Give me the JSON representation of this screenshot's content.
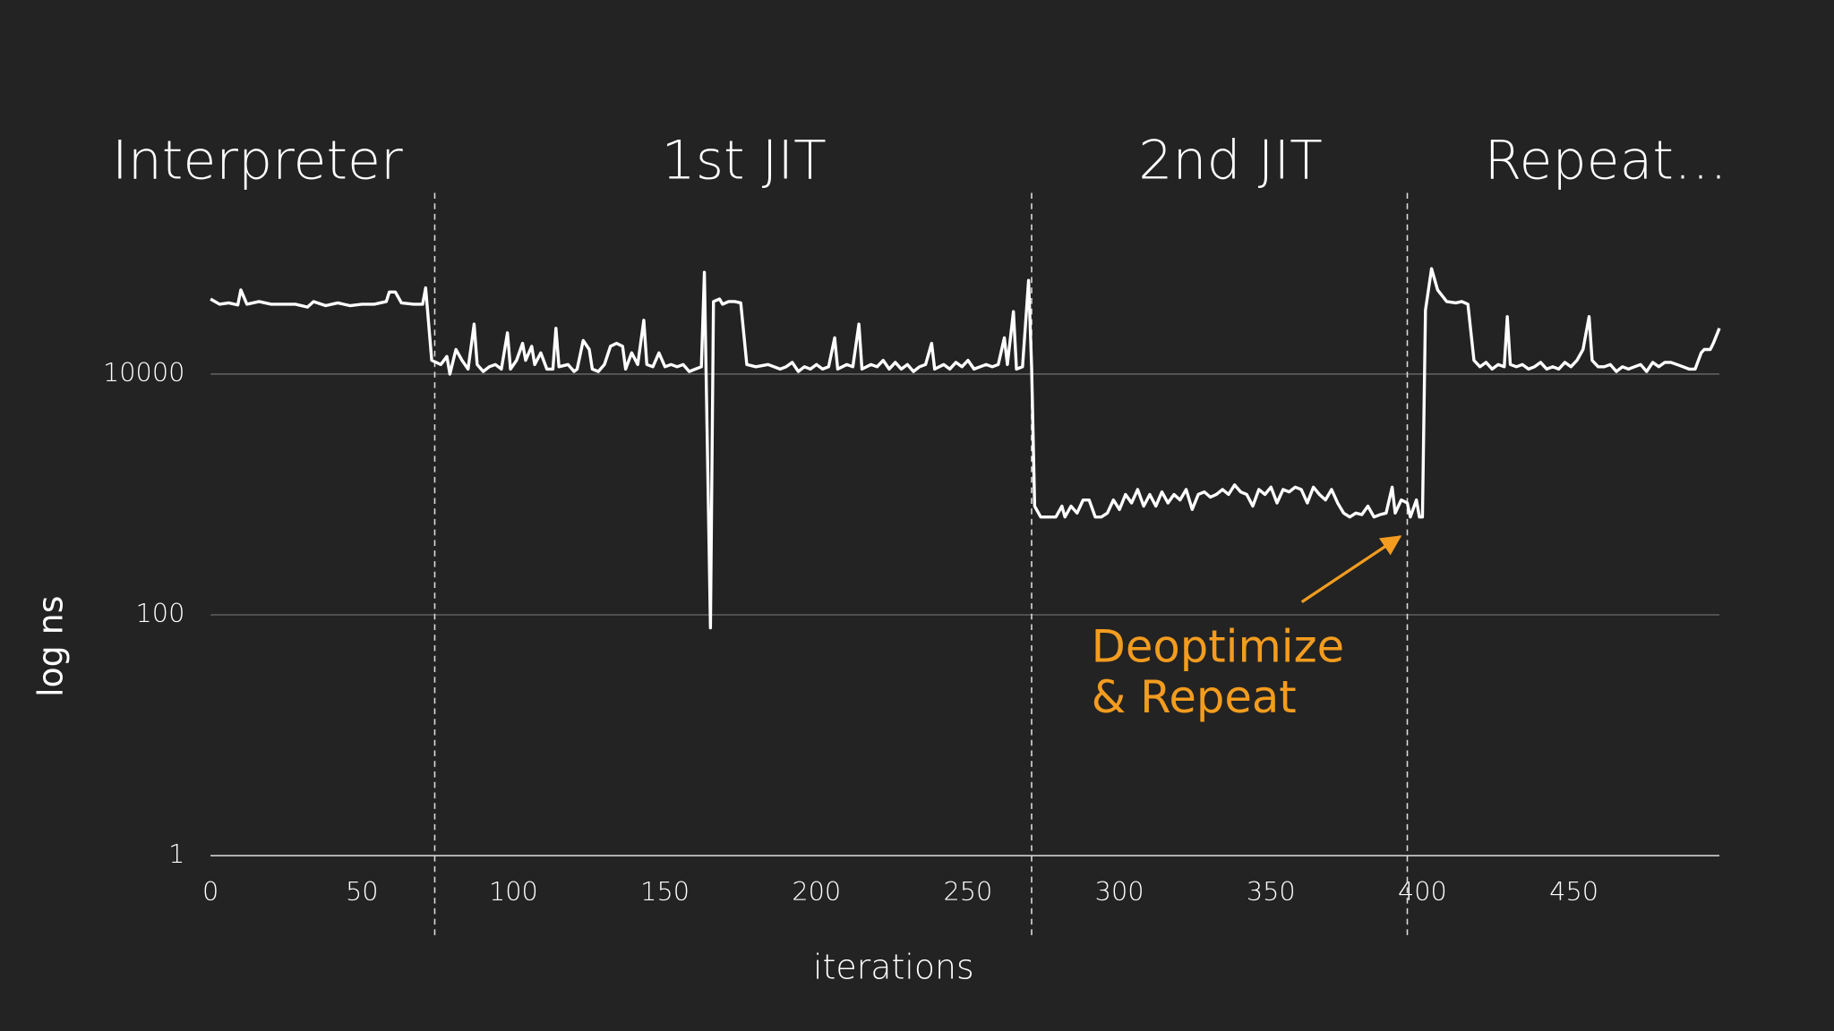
{
  "chart_data": {
    "type": "line",
    "x_label": "iterations",
    "y_label": "log ns",
    "log_y": true,
    "grid": true,
    "color": "#ffffff",
    "xlim": [
      0,
      498
    ],
    "xticks": [
      0,
      50,
      100,
      150,
      200,
      250,
      300,
      350,
      400,
      450
    ],
    "ylim": [
      1,
      100000
    ],
    "yticks": [
      1,
      100,
      10000
    ],
    "phases": [
      "Interpreter",
      "1st JIT",
      "2nd JIT",
      "Repeat…"
    ],
    "boundaries": [
      74,
      271,
      395
    ],
    "annotation": {
      "lines": [
        "Deoptimize",
        "& Repeat"
      ],
      "color": "#f39c1f"
    },
    "x": [
      0,
      3,
      6,
      9,
      10,
      12,
      16,
      20,
      24,
      28,
      32,
      34,
      38,
      42,
      46,
      50,
      54,
      58,
      59,
      61,
      63,
      67,
      70,
      71,
      73,
      76,
      78,
      79,
      81,
      83,
      85,
      87,
      88,
      90,
      92,
      94,
      96,
      98,
      99,
      101,
      103,
      104,
      106,
      107,
      109,
      111,
      113,
      114,
      115,
      118,
      120,
      121,
      123,
      125,
      126,
      128,
      130,
      132,
      134,
      136,
      137,
      139,
      141,
      143,
      144,
      146,
      148,
      150,
      152,
      154,
      156,
      158,
      160,
      162,
      163,
      165,
      166,
      168,
      169,
      171,
      173,
      175,
      177,
      180,
      184,
      188,
      190,
      192,
      194,
      196,
      198,
      200,
      202,
      204,
      206,
      207,
      210,
      212,
      214,
      215,
      218,
      220,
      222,
      224,
      226,
      228,
      230,
      232,
      234,
      236,
      238,
      239,
      242,
      244,
      246,
      248,
      250,
      252,
      254,
      256,
      258,
      260,
      262,
      263,
      265,
      266,
      268,
      270,
      271,
      272,
      274,
      277,
      279,
      281,
      282,
      284,
      286,
      288,
      290,
      292,
      294,
      296,
      298,
      300,
      302,
      304,
      306,
      308,
      310,
      312,
      314,
      316,
      318,
      320,
      322,
      324,
      326,
      328,
      330,
      332,
      334,
      336,
      338,
      340,
      342,
      344,
      346,
      348,
      350,
      352,
      354,
      356,
      358,
      360,
      362,
      364,
      366,
      368,
      370,
      372,
      374,
      376,
      378,
      380,
      382,
      384,
      386,
      388,
      390,
      391,
      393,
      395,
      396,
      398,
      399,
      400,
      401,
      403,
      405,
      408,
      411,
      413,
      415,
      417,
      419,
      421,
      423,
      425,
      427,
      428,
      429,
      431,
      433,
      435,
      437,
      439,
      441,
      443,
      445,
      447,
      449,
      451,
      453,
      455,
      456,
      458,
      460,
      462,
      464,
      466,
      468,
      470,
      472,
      474,
      476,
      478,
      480,
      482,
      484,
      486,
      488,
      490,
      492,
      493,
      495,
      496,
      498
    ],
    "values": [
      42000,
      38000,
      39000,
      37500,
      50000,
      38000,
      40000,
      38000,
      38000,
      38000,
      36000,
      40000,
      37000,
      39000,
      37000,
      38000,
      38000,
      40000,
      48000,
      48000,
      39000,
      38000,
      38000,
      52000,
      13000,
      12000,
      14000,
      10000,
      16000,
      13000,
      11000,
      26000,
      12000,
      10500,
      11500,
      12000,
      11000,
      22000,
      11000,
      13000,
      18000,
      13000,
      17000,
      12000,
      15000,
      11000,
      11000,
      24000,
      11500,
      12000,
      10500,
      11000,
      19000,
      16000,
      11000,
      10500,
      12000,
      17000,
      18000,
      17000,
      11000,
      15000,
      12000,
      28000,
      12000,
      11500,
      15000,
      11500,
      12000,
      11500,
      12000,
      10500,
      11000,
      11500,
      70000,
      78,
      40000,
      42000,
      38000,
      40000,
      40000,
      39000,
      12000,
      11500,
      12000,
      11000,
      11500,
      12500,
      10500,
      11500,
      11000,
      12000,
      11000,
      11500,
      20000,
      11000,
      12000,
      11500,
      26000,
      11000,
      12000,
      11500,
      13000,
      11000,
      12500,
      11000,
      12000,
      10500,
      11500,
      12000,
      18000,
      11000,
      12000,
      11000,
      12500,
      11500,
      13000,
      11000,
      11500,
      12000,
      11500,
      12000,
      20000,
      12000,
      33000,
      11000,
      11500,
      60000,
      11500,
      800,
      650,
      650,
      650,
      800,
      650,
      800,
      700,
      900,
      900,
      650,
      650,
      700,
      900,
      750,
      1000,
      850,
      1100,
      800,
      1000,
      800,
      1050,
      850,
      1000,
      900,
      1100,
      750,
      1000,
      1050,
      950,
      1000,
      1100,
      1000,
      1200,
      1050,
      1000,
      800,
      1100,
      1000,
      1150,
      850,
      1100,
      1050,
      1150,
      1100,
      850,
      1150,
      1000,
      900,
      1100,
      850,
      700,
      650,
      700,
      680,
      800,
      650,
      680,
      700,
      1150,
      700,
      900,
      850,
      650,
      900,
      650,
      650,
      34000,
      75000,
      50000,
      40000,
      39000,
      40000,
      38000,
      13000,
      11500,
      12500,
      11000,
      12000,
      11500,
      30000,
      12000,
      11500,
      12000,
      11000,
      11500,
      12500,
      11000,
      11500,
      11000,
      12500,
      11500,
      13000,
      16000,
      30000,
      13000,
      11500,
      11500,
      12000,
      10500,
      11500,
      11000,
      11500,
      12000,
      10500,
      12500,
      11500,
      12500,
      12500,
      12000,
      11500,
      11000,
      11000,
      15000,
      16000,
      16000,
      18000,
      24000
    ]
  }
}
